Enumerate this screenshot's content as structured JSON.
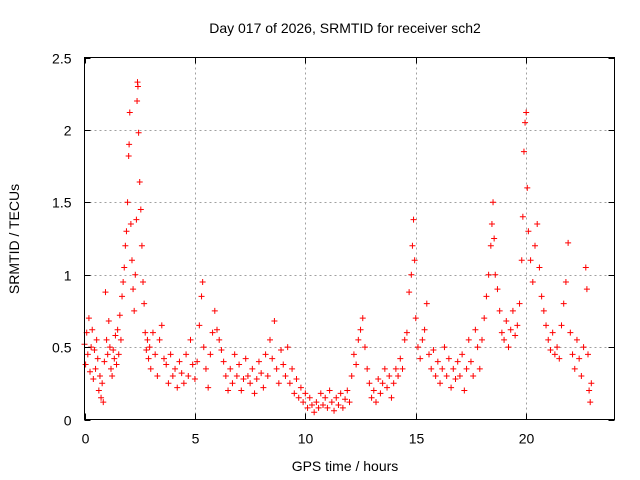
{
  "chart_data": {
    "type": "scatter",
    "title": "Day 017 of 2026, SRMTID for receiver sch2",
    "xlabel": "GPS time / hours",
    "ylabel": "SRMTID / TECUs",
    "xlim": [
      0,
      24
    ],
    "ylim": [
      0,
      2.5
    ],
    "x_ticks": [
      0,
      5,
      10,
      15,
      20
    ],
    "x_tick_labels": [
      "0",
      "5",
      "10",
      "15",
      "20"
    ],
    "y_ticks": [
      0,
      0.5,
      1,
      1.5,
      2,
      2.5
    ],
    "y_tick_labels": [
      "0",
      "0.5",
      "1",
      "1.5",
      "2",
      "2.5"
    ],
    "grid": true,
    "marker": "+",
    "series": [
      {
        "name": "sch2",
        "color": "#ff0000",
        "points": [
          [
            0.0,
            0.52
          ],
          [
            0.05,
            0.38
          ],
          [
            0.1,
            0.6
          ],
          [
            0.15,
            0.45
          ],
          [
            0.2,
            0.7
          ],
          [
            0.25,
            0.33
          ],
          [
            0.3,
            0.5
          ],
          [
            0.35,
            0.62
          ],
          [
            0.4,
            0.28
          ],
          [
            0.45,
            0.48
          ],
          [
            0.5,
            0.35
          ],
          [
            0.55,
            0.55
          ],
          [
            0.6,
            0.42
          ],
          [
            0.65,
            0.2
          ],
          [
            0.7,
            0.3
          ],
          [
            0.75,
            0.15
          ],
          [
            0.8,
            0.25
          ],
          [
            0.85,
            0.12
          ],
          [
            0.9,
            0.4
          ],
          [
            0.95,
            0.88
          ],
          [
            1.0,
            0.55
          ],
          [
            1.05,
            0.45
          ],
          [
            1.1,
            0.68
          ],
          [
            1.15,
            0.5
          ],
          [
            1.2,
            0.35
          ],
          [
            1.25,
            0.3
          ],
          [
            1.3,
            0.48
          ],
          [
            1.35,
            0.42
          ],
          [
            1.4,
            0.58
          ],
          [
            1.45,
            0.38
          ],
          [
            1.5,
            0.62
          ],
          [
            1.55,
            0.45
          ],
          [
            1.6,
            0.72
          ],
          [
            1.65,
            0.55
          ],
          [
            1.7,
            0.85
          ],
          [
            1.75,
            0.95
          ],
          [
            1.8,
            1.05
          ],
          [
            1.85,
            1.2
          ],
          [
            1.9,
            1.3
          ],
          [
            1.95,
            1.5
          ],
          [
            2.0,
            1.82
          ],
          [
            2.02,
            1.9
          ],
          [
            2.05,
            2.12
          ],
          [
            2.1,
            1.35
          ],
          [
            2.15,
            1.1
          ],
          [
            2.2,
            0.9
          ],
          [
            2.25,
            0.75
          ],
          [
            2.3,
            1.0
          ],
          [
            2.35,
            1.38
          ],
          [
            2.38,
            2.2
          ],
          [
            2.4,
            2.33
          ],
          [
            2.42,
            2.3
          ],
          [
            2.45,
            1.98
          ],
          [
            2.5,
            1.64
          ],
          [
            2.55,
            1.45
          ],
          [
            2.6,
            1.2
          ],
          [
            2.65,
            0.95
          ],
          [
            2.7,
            0.8
          ],
          [
            2.75,
            0.6
          ],
          [
            2.8,
            0.48
          ],
          [
            2.85,
            0.55
          ],
          [
            2.9,
            0.42
          ],
          [
            2.95,
            0.5
          ],
          [
            3.0,
            0.35
          ],
          [
            3.1,
            0.6
          ],
          [
            3.2,
            0.45
          ],
          [
            3.3,
            0.3
          ],
          [
            3.4,
            0.55
          ],
          [
            3.5,
            0.65
          ],
          [
            3.6,
            0.42
          ],
          [
            3.7,
            0.38
          ],
          [
            3.8,
            0.25
          ],
          [
            3.9,
            0.45
          ],
          [
            4.0,
            0.3
          ],
          [
            4.1,
            0.35
          ],
          [
            4.2,
            0.22
          ],
          [
            4.3,
            0.4
          ],
          [
            4.4,
            0.32
          ],
          [
            4.5,
            0.25
          ],
          [
            4.6,
            0.45
          ],
          [
            4.7,
            0.3
          ],
          [
            4.8,
            0.55
          ],
          [
            4.9,
            0.38
          ],
          [
            5.0,
            0.28
          ],
          [
            5.1,
            0.4
          ],
          [
            5.2,
            0.65
          ],
          [
            5.3,
            0.85
          ],
          [
            5.35,
            0.95
          ],
          [
            5.4,
            0.5
          ],
          [
            5.5,
            0.35
          ],
          [
            5.6,
            0.22
          ],
          [
            5.7,
            0.45
          ],
          [
            5.8,
            0.6
          ],
          [
            5.9,
            0.75
          ],
          [
            6.0,
            0.62
          ],
          [
            6.1,
            0.55
          ],
          [
            6.2,
            0.48
          ],
          [
            6.3,
            0.4
          ],
          [
            6.4,
            0.3
          ],
          [
            6.5,
            0.2
          ],
          [
            6.6,
            0.35
          ],
          [
            6.7,
            0.25
          ],
          [
            6.8,
            0.45
          ],
          [
            6.9,
            0.3
          ],
          [
            7.0,
            0.38
          ],
          [
            7.1,
            0.2
          ],
          [
            7.2,
            0.28
          ],
          [
            7.3,
            0.42
          ],
          [
            7.4,
            0.3
          ],
          [
            7.5,
            0.25
          ],
          [
            7.6,
            0.35
          ],
          [
            7.7,
            0.18
          ],
          [
            7.8,
            0.28
          ],
          [
            7.9,
            0.4
          ],
          [
            8.0,
            0.32
          ],
          [
            8.1,
            0.22
          ],
          [
            8.2,
            0.45
          ],
          [
            8.3,
            0.3
          ],
          [
            8.4,
            0.55
          ],
          [
            8.5,
            0.42
          ],
          [
            8.6,
            0.68
          ],
          [
            8.7,
            0.35
          ],
          [
            8.8,
            0.25
          ],
          [
            8.9,
            0.48
          ],
          [
            9.0,
            0.38
          ],
          [
            9.1,
            0.3
          ],
          [
            9.2,
            0.5
          ],
          [
            9.3,
            0.25
          ],
          [
            9.4,
            0.35
          ],
          [
            9.5,
            0.18
          ],
          [
            9.6,
            0.28
          ],
          [
            9.7,
            0.15
          ],
          [
            9.8,
            0.22
          ],
          [
            9.9,
            0.12
          ],
          [
            10.0,
            0.18
          ],
          [
            10.1,
            0.08
          ],
          [
            10.2,
            0.15
          ],
          [
            10.3,
            0.1
          ],
          [
            10.4,
            0.05
          ],
          [
            10.5,
            0.12
          ],
          [
            10.6,
            0.08
          ],
          [
            10.7,
            0.18
          ],
          [
            10.8,
            0.1
          ],
          [
            10.9,
            0.15
          ],
          [
            11.0,
            0.08
          ],
          [
            11.1,
            0.2
          ],
          [
            11.2,
            0.12
          ],
          [
            11.3,
            0.06
          ],
          [
            11.4,
            0.15
          ],
          [
            11.5,
            0.1
          ],
          [
            11.6,
            0.18
          ],
          [
            11.7,
            0.08
          ],
          [
            11.8,
            0.14
          ],
          [
            11.9,
            0.2
          ],
          [
            12.0,
            0.12
          ],
          [
            12.1,
            0.3
          ],
          [
            12.2,
            0.45
          ],
          [
            12.3,
            0.38
          ],
          [
            12.4,
            0.55
          ],
          [
            12.5,
            0.62
          ],
          [
            12.6,
            0.7
          ],
          [
            12.7,
            0.5
          ],
          [
            12.8,
            0.35
          ],
          [
            12.9,
            0.25
          ],
          [
            13.0,
            0.15
          ],
          [
            13.1,
            0.2
          ],
          [
            13.2,
            0.12
          ],
          [
            13.3,
            0.28
          ],
          [
            13.4,
            0.18
          ],
          [
            13.5,
            0.25
          ],
          [
            13.6,
            0.35
          ],
          [
            13.7,
            0.22
          ],
          [
            13.8,
            0.3
          ],
          [
            13.9,
            0.15
          ],
          [
            14.0,
            0.25
          ],
          [
            14.1,
            0.35
          ],
          [
            14.2,
            0.3
          ],
          [
            14.3,
            0.42
          ],
          [
            14.4,
            0.35
          ],
          [
            14.5,
            0.55
          ],
          [
            14.6,
            0.6
          ],
          [
            14.7,
            0.88
          ],
          [
            14.8,
            1.0
          ],
          [
            14.85,
            1.2
          ],
          [
            14.9,
            1.38
          ],
          [
            14.95,
            1.1
          ],
          [
            15.0,
            0.7
          ],
          [
            15.1,
            0.5
          ],
          [
            15.2,
            0.42
          ],
          [
            15.3,
            0.55
          ],
          [
            15.4,
            0.62
          ],
          [
            15.5,
            0.8
          ],
          [
            15.6,
            0.45
          ],
          [
            15.7,
            0.35
          ],
          [
            15.8,
            0.48
          ],
          [
            15.9,
            0.3
          ],
          [
            16.0,
            0.4
          ],
          [
            16.1,
            0.25
          ],
          [
            16.2,
            0.35
          ],
          [
            16.3,
            0.5
          ],
          [
            16.4,
            0.3
          ],
          [
            16.5,
            0.42
          ],
          [
            16.6,
            0.22
          ],
          [
            16.7,
            0.35
          ],
          [
            16.8,
            0.28
          ],
          [
            16.9,
            0.4
          ],
          [
            17.0,
            0.3
          ],
          [
            17.1,
            0.45
          ],
          [
            17.2,
            0.2
          ],
          [
            17.3,
            0.35
          ],
          [
            17.4,
            0.55
          ],
          [
            17.5,
            0.4
          ],
          [
            17.6,
            0.3
          ],
          [
            17.7,
            0.62
          ],
          [
            17.8,
            0.5
          ],
          [
            17.9,
            0.35
          ],
          [
            18.0,
            0.55
          ],
          [
            18.1,
            0.7
          ],
          [
            18.2,
            0.85
          ],
          [
            18.3,
            1.0
          ],
          [
            18.4,
            1.2
          ],
          [
            18.45,
            1.35
          ],
          [
            18.5,
            1.5
          ],
          [
            18.55,
            1.25
          ],
          [
            18.6,
            1.0
          ],
          [
            18.7,
            0.9
          ],
          [
            18.8,
            0.75
          ],
          [
            18.9,
            0.6
          ],
          [
            19.0,
            0.55
          ],
          [
            19.1,
            0.68
          ],
          [
            19.2,
            0.5
          ],
          [
            19.3,
            0.62
          ],
          [
            19.4,
            0.75
          ],
          [
            19.5,
            0.58
          ],
          [
            19.6,
            0.65
          ],
          [
            19.7,
            0.8
          ],
          [
            19.8,
            1.1
          ],
          [
            19.85,
            1.4
          ],
          [
            19.9,
            1.85
          ],
          [
            19.95,
            2.05
          ],
          [
            20.0,
            2.12
          ],
          [
            20.05,
            1.6
          ],
          [
            20.1,
            1.3
          ],
          [
            20.2,
            1.1
          ],
          [
            20.3,
            0.95
          ],
          [
            20.4,
            1.2
          ],
          [
            20.5,
            1.35
          ],
          [
            20.6,
            1.05
          ],
          [
            20.7,
            0.85
          ],
          [
            20.8,
            0.75
          ],
          [
            20.9,
            0.65
          ],
          [
            21.0,
            0.55
          ],
          [
            21.1,
            0.48
          ],
          [
            21.2,
            0.6
          ],
          [
            21.3,
            0.45
          ],
          [
            21.4,
            0.5
          ],
          [
            21.5,
            0.42
          ],
          [
            21.6,
            0.65
          ],
          [
            21.7,
            0.8
          ],
          [
            21.8,
            0.95
          ],
          [
            21.9,
            1.22
          ],
          [
            22.0,
            0.6
          ],
          [
            22.1,
            0.45
          ],
          [
            22.2,
            0.35
          ],
          [
            22.3,
            0.55
          ],
          [
            22.4,
            0.42
          ],
          [
            22.5,
            0.3
          ],
          [
            22.6,
            0.5
          ],
          [
            22.7,
            1.05
          ],
          [
            22.75,
            0.9
          ],
          [
            22.8,
            0.45
          ],
          [
            22.85,
            0.2
          ],
          [
            22.9,
            0.12
          ],
          [
            22.95,
            0.25
          ]
        ]
      }
    ]
  }
}
